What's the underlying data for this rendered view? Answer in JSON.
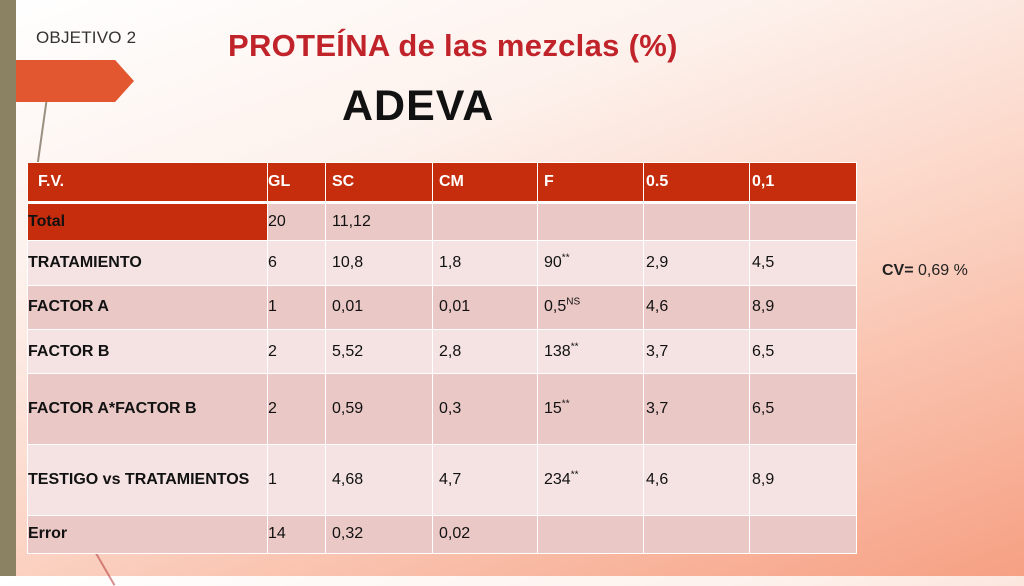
{
  "header": {
    "objetivo": "OBJETIVO 2",
    "title": "PROTEÍNA de las mezclas (%)",
    "subtitle": "ADEVA"
  },
  "cv": {
    "label": "CV=",
    "value": " 0,69 %"
  },
  "table": {
    "columns": [
      "F.V.",
      "GL",
      "SC",
      "CM",
      "F",
      "0.5",
      "0,1"
    ],
    "rows": [
      {
        "fv": "Total",
        "gl": "20",
        "sc": "11,12",
        "cm": "",
        "f": "",
        "sig": "",
        "p05": "",
        "p01": ""
      },
      {
        "fv": "TRATAMIENTO",
        "gl": "6",
        "sc": "10,8",
        "cm": "1,8",
        "f": "90",
        "sig": "**",
        "p05": "2,9",
        "p01": "4,5"
      },
      {
        "fv": "FACTOR A",
        "gl": "1",
        "sc": "0,01",
        "cm": "0,01",
        "f": "0,5",
        "sig": "NS",
        "p05": "4,6",
        "p01": "8,9"
      },
      {
        "fv": "FACTOR B",
        "gl": "2",
        "sc": "5,52",
        "cm": "2,8",
        "f": "138",
        "sig": "**",
        "p05": "3,7",
        "p01": "6,5"
      },
      {
        "fv": "FACTOR A*FACTOR B",
        "gl": "2",
        "sc": "0,59",
        "cm": "0,3",
        "f": "15",
        "sig": "**",
        "p05": "3,7",
        "p01": "6,5"
      },
      {
        "fv": "TESTIGO vs TRATAMIENTOS",
        "gl": "1",
        "sc": "4,68",
        "cm": "4,7",
        "f": "234",
        "sig": "**",
        "p05": "4,6",
        "p01": "8,9"
      },
      {
        "fv": "Error",
        "gl": "14",
        "sc": "0,32",
        "cm": "0,02",
        "f": "",
        "sig": "",
        "p05": "",
        "p01": ""
      }
    ]
  },
  "colors": {
    "header_red": "#c62d0c",
    "title_red": "#c0242a",
    "accent_orange": "#e2572f",
    "row_dark": "#e9c8c6",
    "row_light": "#f4e3e2"
  }
}
